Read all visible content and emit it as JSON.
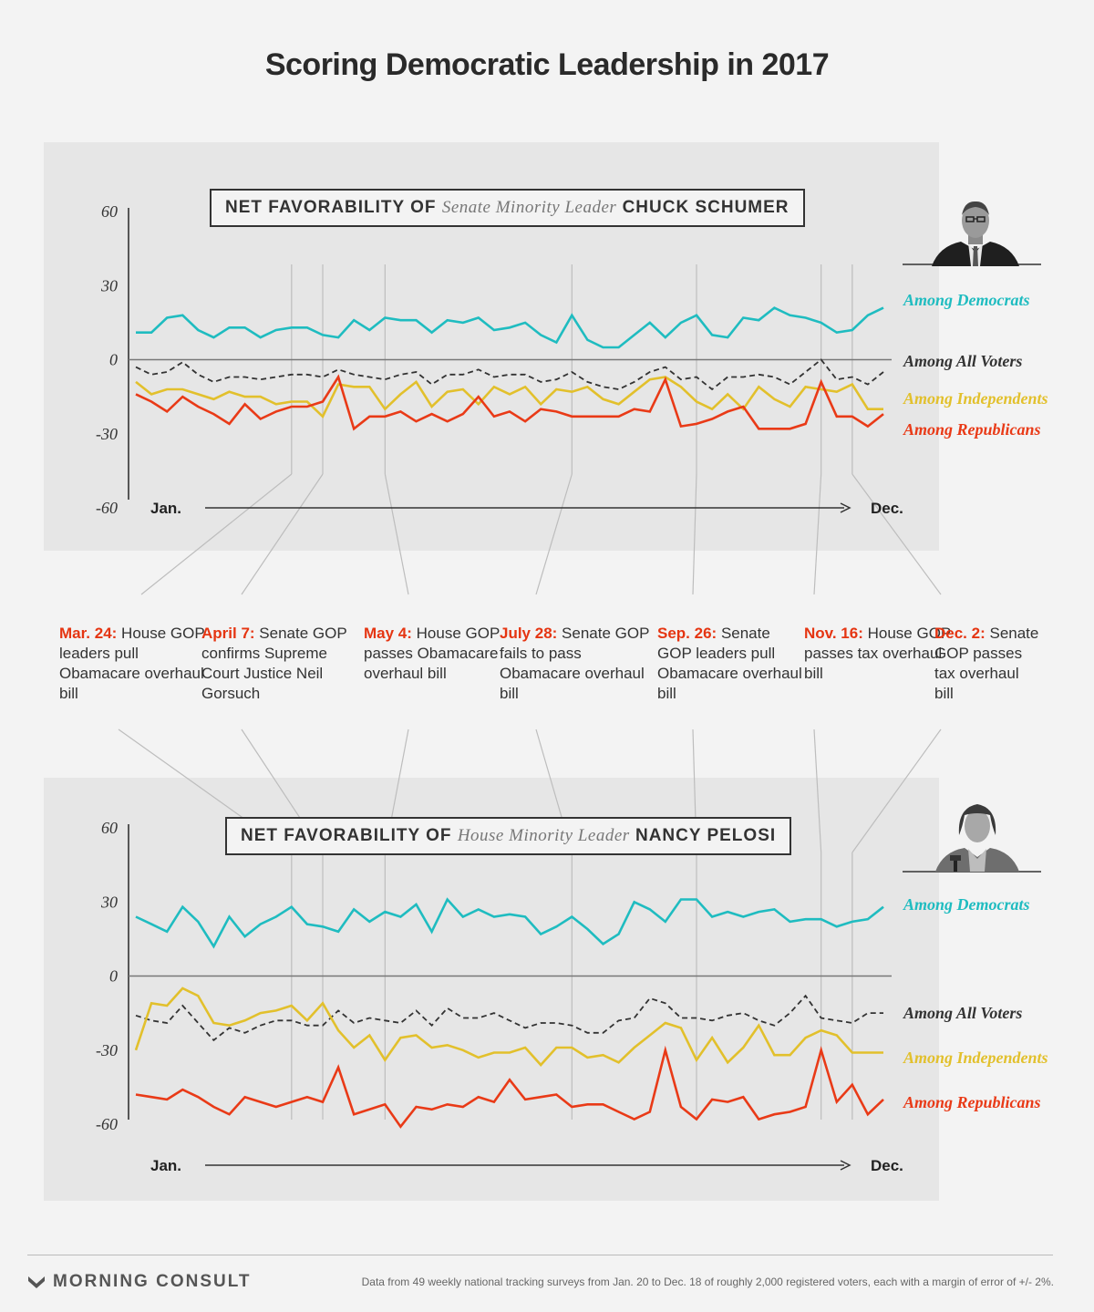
{
  "title": "Scoring Democratic Leadership in 2017",
  "colors": {
    "democrats": "#1fbcc0",
    "all_voters": "#333333",
    "independents": "#e2c02c",
    "republicans": "#e93a17",
    "event_date": "#e53512"
  },
  "events": [
    {
      "date": "Mar. 24:",
      "text": "House GOP leaders pull Obamacare overhaul bill",
      "week": 10
    },
    {
      "date": "April 7:",
      "text": "Senate GOP confirms Supreme Court Justice Neil Gorsuch",
      "week": 12
    },
    {
      "date": "May 4:",
      "text": "House GOP passes Obamacare overhaul bill",
      "week": 16
    },
    {
      "date": "July 28:",
      "text": "Senate GOP fails to pass Obamacare overhaul bill",
      "week": 28
    },
    {
      "date": "Sep. 26:",
      "text": "Senate GOP leaders pull Obamacare overhaul bill",
      "week": 36
    },
    {
      "date": "Nov. 16:",
      "text": "House GOP passes tax overhaul bill",
      "week": 44
    },
    {
      "date": "Dec. 2:",
      "text": "Senate GOP passes tax overhaul bill",
      "week": 46
    }
  ],
  "chart_data": [
    {
      "type": "line",
      "id": "schumer",
      "title_parts": {
        "lead": "NET FAVORABILITY OF",
        "role": "Senate Minority Leader",
        "name": "CHUCK SCHUMER"
      },
      "xlabel_start": "Jan.",
      "xlabel_end": "Dec.",
      "ylim": [
        -60,
        60
      ],
      "yticks": [
        "60",
        "30",
        "0",
        "-30",
        "-60"
      ],
      "portrait": "chuck-schumer-portrait",
      "series": [
        {
          "name": "Among Democrats",
          "key": "democrats",
          "values": [
            11,
            11,
            17,
            18,
            12,
            9,
            13,
            13,
            9,
            12,
            13,
            13,
            10,
            9,
            16,
            12,
            17,
            16,
            16,
            11,
            16,
            15,
            17,
            12,
            13,
            15,
            10,
            7,
            18,
            8,
            5,
            5,
            10,
            15,
            9,
            15,
            18,
            10,
            9,
            17,
            16,
            21,
            18,
            17,
            15,
            11,
            12,
            18,
            21
          ]
        },
        {
          "name": "Among All Voters",
          "key": "all_voters",
          "values": [
            -3,
            -6,
            -5,
            -1,
            -6,
            -9,
            -7,
            -7,
            -8,
            -7,
            -6,
            -6,
            -7,
            -4,
            -6,
            -7,
            -8,
            -6,
            -5,
            -10,
            -6,
            -6,
            -4,
            -7,
            -6,
            -6,
            -9,
            -8,
            -5,
            -9,
            -11,
            -12,
            -9,
            -5,
            -3,
            -8,
            -7,
            -12,
            -7,
            -7,
            -6,
            -7,
            -10,
            -5,
            0,
            -8,
            -7,
            -10,
            -5
          ]
        },
        {
          "name": "Among Independents",
          "key": "independents",
          "values": [
            -9,
            -14,
            -12,
            -12,
            -14,
            -16,
            -13,
            -15,
            -15,
            -18,
            -17,
            -17,
            -23,
            -10,
            -11,
            -11,
            -20,
            -14,
            -9,
            -19,
            -13,
            -12,
            -18,
            -11,
            -14,
            -11,
            -18,
            -12,
            -13,
            -11,
            -16,
            -18,
            -13,
            -8,
            -7,
            -11,
            -17,
            -20,
            -14,
            -20,
            -11,
            -16,
            -19,
            -11,
            -12,
            -13,
            -10,
            -20,
            -20
          ]
        },
        {
          "name": "Among Republicans",
          "key": "republicans",
          "values": [
            -14,
            -17,
            -21,
            -15,
            -19,
            -22,
            -26,
            -18,
            -24,
            -21,
            -19,
            -19,
            -17,
            -7,
            -28,
            -23,
            -23,
            -21,
            -25,
            -22,
            -25,
            -22,
            -15,
            -23,
            -21,
            -25,
            -20,
            -21,
            -23,
            -23,
            -23,
            -23,
            -20,
            -21,
            -8,
            -27,
            -26,
            -24,
            -21,
            -19,
            -28,
            -28,
            -28,
            -26,
            -9,
            -23,
            -23,
            -27,
            -22
          ]
        }
      ]
    },
    {
      "type": "line",
      "id": "pelosi",
      "title_parts": {
        "lead": "NET FAVORABILITY OF",
        "role": "House Minority Leader",
        "name": "NANCY PELOSI"
      },
      "xlabel_start": "Jan.",
      "xlabel_end": "Dec.",
      "ylim": [
        -60,
        60
      ],
      "yticks": [
        "60",
        "30",
        "0",
        "-30",
        "-60"
      ],
      "portrait": "nancy-pelosi-portrait",
      "series": [
        {
          "name": "Among Democrats",
          "key": "democrats",
          "values": [
            24,
            21,
            18,
            28,
            22,
            12,
            24,
            16,
            21,
            24,
            28,
            21,
            20,
            18,
            27,
            22,
            26,
            24,
            29,
            18,
            31,
            24,
            27,
            24,
            25,
            24,
            17,
            20,
            24,
            19,
            13,
            17,
            30,
            27,
            22,
            31,
            31,
            24,
            26,
            24,
            26,
            27,
            22,
            23,
            23,
            20,
            22,
            23,
            28
          ]
        },
        {
          "name": "Among All Voters",
          "key": "all_voters",
          "values": [
            -16,
            -18,
            -19,
            -12,
            -19,
            -26,
            -21,
            -23,
            -20,
            -18,
            -18,
            -20,
            -20,
            -14,
            -19,
            -17,
            -18,
            -19,
            -14,
            -20,
            -13,
            -17,
            -17,
            -15,
            -18,
            -21,
            -19,
            -19,
            -20,
            -23,
            -23,
            -18,
            -17,
            -9,
            -11,
            -17,
            -17,
            -18,
            -16,
            -15,
            -18,
            -20,
            -15,
            -8,
            -17,
            -18,
            -19,
            -15,
            -15
          ]
        },
        {
          "name": "Among Independents",
          "key": "independents",
          "values": [
            -30,
            -11,
            -12,
            -5,
            -8,
            -19,
            -20,
            -18,
            -15,
            -14,
            -12,
            -18,
            -11,
            -22,
            -29,
            -24,
            -34,
            -25,
            -24,
            -29,
            -28,
            -30,
            -33,
            -31,
            -31,
            -29,
            -36,
            -29,
            -29,
            -33,
            -32,
            -35,
            -29,
            -24,
            -19,
            -21,
            -34,
            -25,
            -35,
            -29,
            -20,
            -32,
            -32,
            -25,
            -22,
            -24,
            -31,
            -31,
            -31
          ]
        },
        {
          "name": "Among Republicans",
          "key": "republicans",
          "values": [
            -48,
            -49,
            -50,
            -46,
            -49,
            -53,
            -56,
            -49,
            -51,
            -53,
            -51,
            -49,
            -51,
            -37,
            -56,
            -54,
            -52,
            -61,
            -53,
            -54,
            -52,
            -53,
            -49,
            -51,
            -42,
            -50,
            -49,
            -48,
            -53,
            -52,
            -52,
            -55,
            -58,
            -55,
            -30,
            -53,
            -58,
            -50,
            -51,
            -49,
            -58,
            -56,
            -55,
            -53,
            -30,
            -51,
            -44,
            -56,
            -50
          ]
        }
      ]
    }
  ],
  "footer": {
    "brand": "MORNING CONSULT",
    "note": "Data from 49 weekly national tracking surveys from Jan. 20 to Dec. 18 of roughly 2,000 registered voters, each with a margin of error of +/- 2%."
  }
}
